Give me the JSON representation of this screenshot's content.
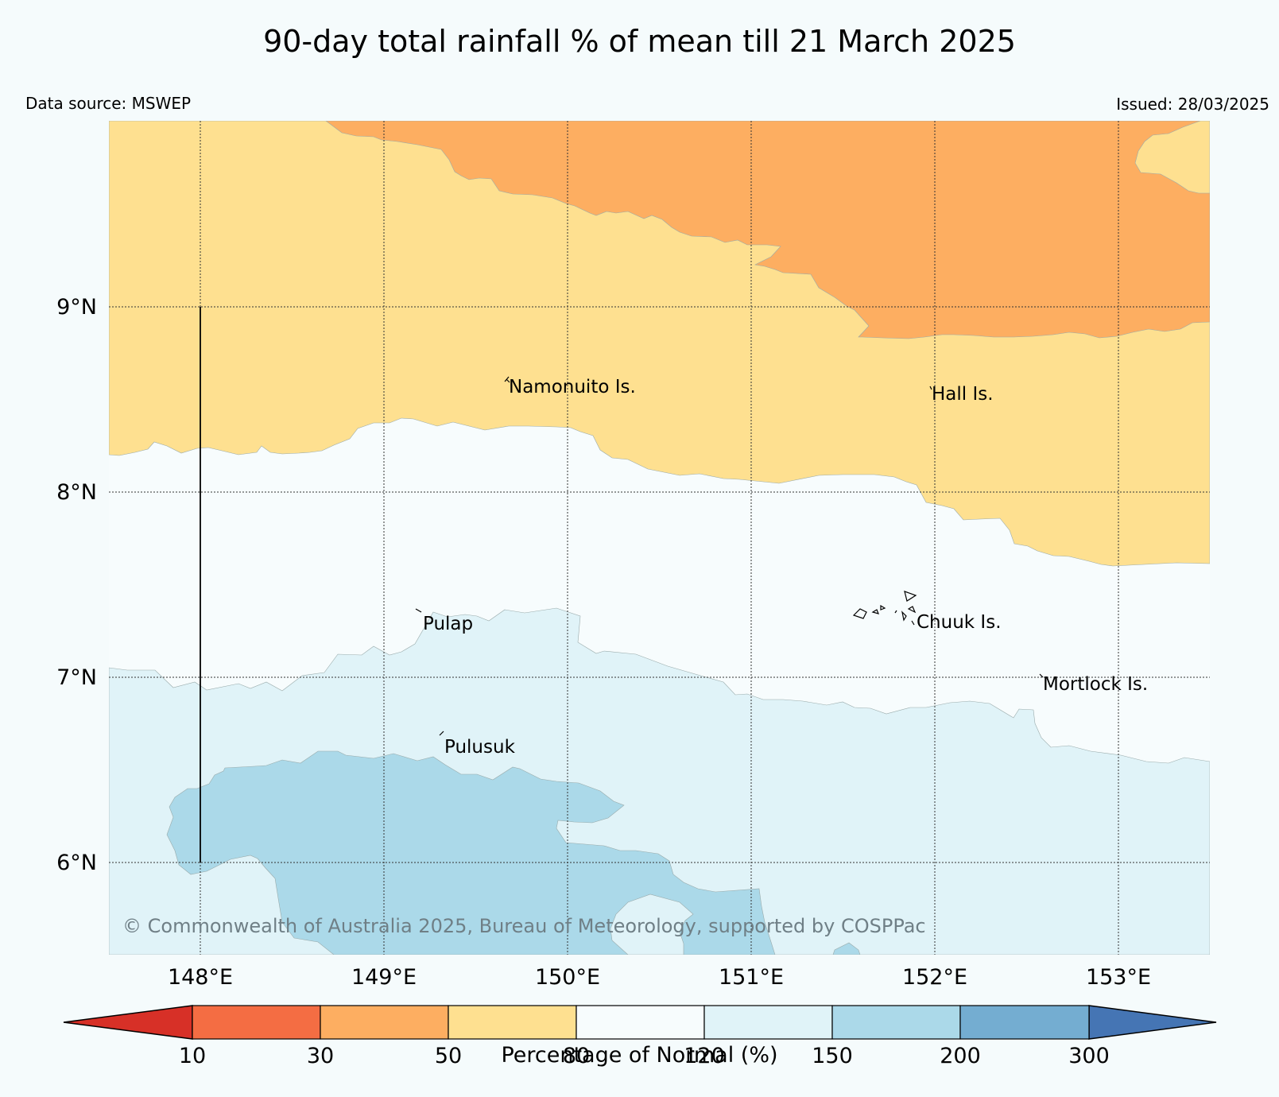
{
  "title": "90-day total rainfall % of mean till 21 March 2025",
  "source": "Data source: MSWEP",
  "issued": "Issued: 28/03/2025",
  "copyright": "© Commonwealth of Australia 2025, Bureau of Meteorology, supported by COSPPac",
  "map": {
    "extent": {
      "lon": [
        147.5,
        153.5
      ],
      "lat": [
        5.5,
        10.0
      ]
    },
    "grid_lines": true,
    "lat_ticks": [
      "9°N",
      "8°N",
      "7°N",
      "6°N"
    ],
    "lon_ticks": [
      "148°E",
      "149°E",
      "150°E",
      "151°E",
      "152°E",
      "153°E"
    ],
    "places": [
      {
        "name": "Namonuito Is.",
        "lon": 149.6,
        "lat": 8.6
      },
      {
        "name": "Hall Is.",
        "lon": 151.98,
        "lat": 8.56
      },
      {
        "name": "Pulap",
        "lon": 149.17,
        "lat": 7.33
      },
      {
        "name": "Chuuk Is.",
        "lon": 151.85,
        "lat": 7.35
      },
      {
        "name": "Mortlock Is.",
        "lon": 152.58,
        "lat": 7.0
      },
      {
        "name": "Pulusuk",
        "lon": 149.31,
        "lat": 6.68
      }
    ],
    "colors": {
      "below_10": "#d73027",
      "10_30": "#f46d43",
      "30_50": "#fdae61",
      "50_80": "#fee090",
      "80_120": "#f7fcfd",
      "120_150": "#e0f3f8",
      "150_200": "#abd9e9",
      "200_300": "#74add1",
      "above_300": "#4575b4"
    }
  },
  "colorbar": {
    "title": "Percentage of Normal (%)",
    "ticks": [
      "10",
      "30",
      "50",
      "80",
      "120",
      "150",
      "200",
      "300"
    ],
    "colors": [
      "#f46d43",
      "#fdae61",
      "#fee090",
      "#f7fcfd",
      "#e0f3f8",
      "#abd9e9",
      "#74add1"
    ],
    "under_color": "#d73027",
    "over_color": "#4575b4"
  }
}
